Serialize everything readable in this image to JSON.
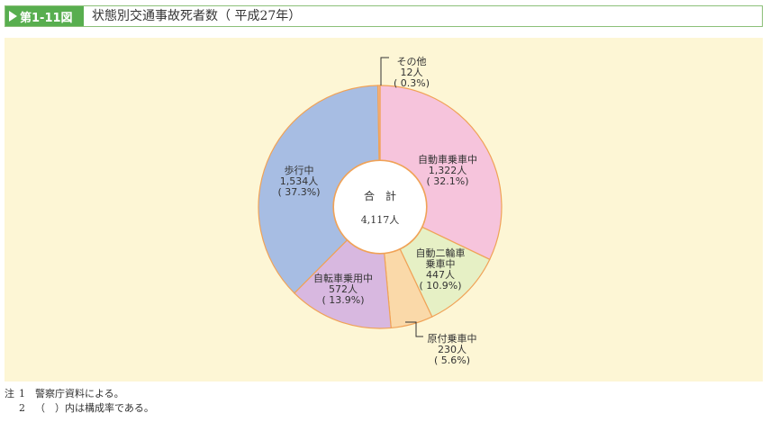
{
  "header": {
    "figure_number": "第1-11図",
    "title": "状態別交通事故死者数（ 平成27年）"
  },
  "chart_data": {
    "type": "pie",
    "donut": true,
    "center_label": {
      "line1": "合　計",
      "line2": "4,117人"
    },
    "total": 4117,
    "slices": [
      {
        "name": "自動車乗車中",
        "lines": [
          "自動車乗車中",
          "1,322人",
          "( 32.1%)"
        ],
        "value": 1322,
        "percent": 32.1,
        "color": "#f6c4dc"
      },
      {
        "name": "自動二輪車乗車中",
        "lines": [
          "自動二輪車",
          "乗車中",
          "447人",
          "( 10.9%)"
        ],
        "value": 447,
        "percent": 10.9,
        "color": "#e6f0c5"
      },
      {
        "name": "原付乗車中",
        "lines": [
          "原付乗車中",
          "230人",
          "( 5.6%)"
        ],
        "value": 230,
        "percent": 5.6,
        "color": "#fad9a9"
      },
      {
        "name": "自転車乗用中",
        "lines": [
          "自転車乗用中",
          "572人",
          "( 13.9%)"
        ],
        "value": 572,
        "percent": 13.9,
        "color": "#d8b8e0"
      },
      {
        "name": "歩行中",
        "lines": [
          "歩行中",
          "1,534人",
          "( 37.3%)"
        ],
        "value": 1534,
        "percent": 37.3,
        "color": "#a7bde3"
      },
      {
        "name": "その他",
        "lines": [
          "その他",
          "12人",
          "( 0.3%)"
        ],
        "value": 12,
        "percent": 0.3,
        "color": "#f5b68a"
      }
    ],
    "slice_border_color": "#f0a257"
  },
  "notes": [
    {
      "label": "注",
      "num": "1",
      "text": "警察庁資料による。"
    },
    {
      "label": "",
      "num": "2",
      "text": "（　）内は構成率である。"
    }
  ]
}
